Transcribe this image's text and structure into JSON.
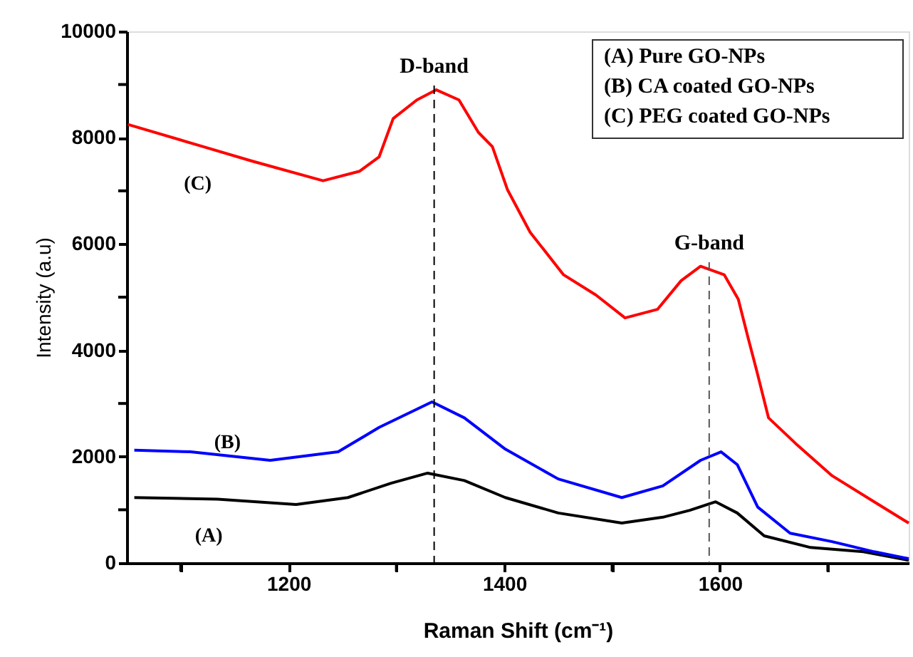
{
  "chart_data": {
    "type": "line",
    "xlabel": "Raman Shift (cm⁻¹)",
    "ylabel": "Intensity (a.u)",
    "xlim": [
      1050,
      1775
    ],
    "xticks": [
      {
        "value": 1100,
        "label": null
      },
      1200,
      {
        "value": 1300,
        "label": null
      },
      1400,
      {
        "value": 1500,
        "label": null
      },
      1600,
      {
        "value": 1700,
        "label": null
      }
    ],
    "ylim": [
      0,
      10000
    ],
    "yticks": [
      0,
      {
        "value": 1000,
        "label": null
      },
      2000,
      {
        "value": 3000,
        "label": null
      },
      4000,
      {
        "value": 5000,
        "label": null
      },
      6000,
      {
        "value": 7000,
        "label": null
      },
      8000,
      {
        "value": 9000,
        "label": null
      },
      10000
    ],
    "grid": false,
    "marker": "none",
    "line_style": "solid",
    "series": [
      {
        "color": "#000000",
        "x": [
          1057,
          1134,
          1207,
          1255,
          1295,
          1329,
          1363,
          1401,
          1450,
          1509,
          1547,
          1572,
          1596,
          1616,
          1641,
          1684,
          1733,
          1775
        ],
        "values": [
          1230,
          1200,
          1100,
          1230,
          1500,
          1690,
          1550,
          1230,
          940,
          750,
          860,
          990,
          1150,
          940,
          510,
          290,
          210,
          50
        ]
      },
      {
        "color": "#0000ff",
        "x": [
          1057,
          1109,
          1183,
          1246,
          1284,
          1333,
          1363,
          1401,
          1450,
          1509,
          1547,
          1582,
          1601,
          1616,
          1635,
          1665,
          1704,
          1743,
          1775
        ],
        "values": [
          2120,
          2090,
          1930,
          2090,
          2550,
          3030,
          2730,
          2140,
          1580,
          1230,
          1450,
          1930,
          2090,
          1850,
          1050,
          560,
          400,
          210,
          80
        ]
      },
      {
        "color": "#ff0000",
        "x": [
          1051,
          1121,
          1166,
          1232,
          1266,
          1284,
          1297,
          1319,
          1337,
          1358,
          1376,
          1389,
          1403,
          1424,
          1455,
          1485,
          1512,
          1542,
          1564,
          1582,
          1604,
          1617,
          1626,
          1634,
          1645,
          1670,
          1704,
          1743,
          1775
        ],
        "values": [
          8250,
          7830,
          7560,
          7190,
          7370,
          7640,
          8360,
          8710,
          8900,
          8710,
          8100,
          7830,
          7020,
          6220,
          5420,
          5040,
          4610,
          4770,
          5310,
          5580,
          5420,
          4960,
          4240,
          3620,
          2730,
          2250,
          1640,
          1150,
          750
        ]
      }
    ],
    "ref_lines": [
      {
        "axis": "x",
        "value": 1335,
        "label": "D-band",
        "color": "#000000",
        "line_style": "dashed"
      },
      {
        "axis": "x",
        "value": 1590,
        "label": "G-band",
        "color": "#555555",
        "line_style": "dashed"
      }
    ],
    "annotations": [
      {
        "text": "(A)",
        "x": 1163,
        "y": 1050
      },
      {
        "text": "(B)",
        "x": 1183,
        "y": 2000
      },
      {
        "text": "(C)",
        "x": 1166,
        "y": 7560
      },
      "(A) Pure GO-NPs",
      "(B) CA coated GO-NPs",
      "(C) PEG coated GO-NPs"
    ]
  }
}
